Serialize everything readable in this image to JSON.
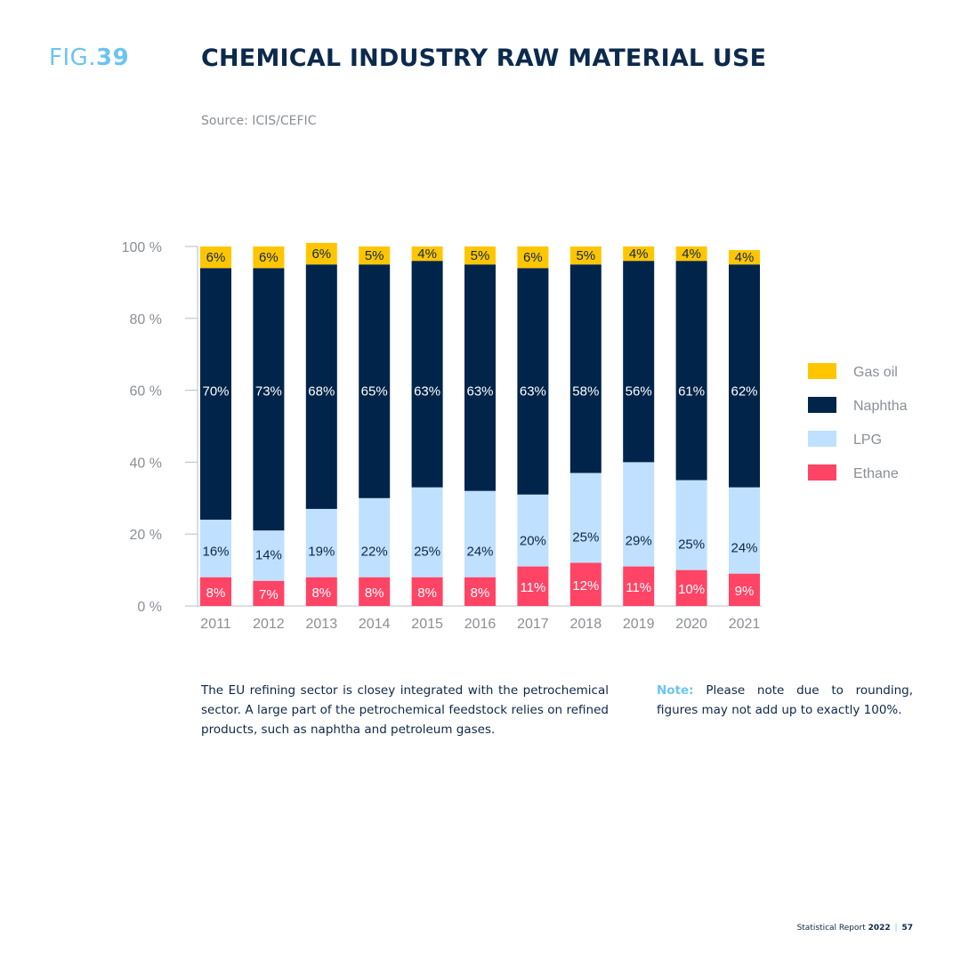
{
  "header": {
    "fig_prefix": "FIG.",
    "fig_number": "39",
    "title": "CHEMICAL INDUSTRY RAW MATERIAL USE",
    "source": "Source: ICIS/CEFIC"
  },
  "chart_data": {
    "type": "bar",
    "stacked": true,
    "categories": [
      "2011",
      "2012",
      "2013",
      "2014",
      "2015",
      "2016",
      "2017",
      "2018",
      "2019",
      "2020",
      "2021"
    ],
    "series": [
      {
        "name": "Ethane",
        "color": "#ff4466",
        "label_color": "#ffffff",
        "values": [
          8,
          7,
          8,
          8,
          8,
          8,
          11,
          12,
          11,
          10,
          9
        ]
      },
      {
        "name": "LPG",
        "color": "#bfe0ff",
        "label_color": "#0d2747",
        "values": [
          16,
          14,
          19,
          22,
          25,
          24,
          20,
          25,
          29,
          25,
          24
        ]
      },
      {
        "name": "Naphtha",
        "color": "#01244a",
        "label_color": "#ffffff",
        "values": [
          70,
          73,
          68,
          65,
          63,
          63,
          63,
          58,
          56,
          61,
          62
        ]
      },
      {
        "name": "Gas oil",
        "color": "#ffc600",
        "label_color": "#0d2747",
        "values": [
          6,
          6,
          6,
          5,
          4,
          5,
          6,
          5,
          4,
          4,
          4
        ]
      }
    ],
    "ylim": [
      0,
      100
    ],
    "yticks": [
      0,
      20,
      40,
      60,
      80,
      100
    ],
    "ytick_labels": [
      "0 %",
      "20 %",
      "40 %",
      "60 %",
      "80 %",
      "100 %"
    ],
    "legend_order": [
      "Gas oil",
      "Naphtha",
      "LPG",
      "Ethane"
    ],
    "legend_position": "right",
    "grid": false,
    "xlabel": "",
    "ylabel": ""
  },
  "text": {
    "paragraph": "The EU refining sector is closey integrated with the petrochemical sector. A large part of the petrochemical feedstock relies on refined products, such as naphtha and petroleum gases.",
    "note_label": "Note:",
    "note_text": " Please note due to rounding, figures may not add up to exactly 100%."
  },
  "footer": {
    "report": "Statistical Report",
    "year": "2022",
    "separator": "|",
    "page": "57"
  }
}
